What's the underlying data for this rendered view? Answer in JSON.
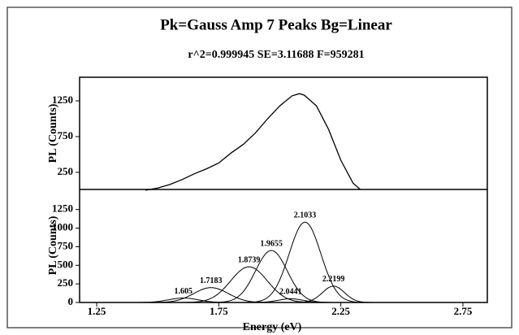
{
  "chart_data": [
    {
      "type": "line",
      "title": "Pk=Gauss Amp  7 Peaks  Bg=Linear",
      "subtitle": "r^2=0.999945  SE=3.11688  F=959281",
      "ylabel": "PL (Counts)",
      "color": "#000000",
      "x": [
        1.45,
        1.5,
        1.55,
        1.6,
        1.65,
        1.7,
        1.75,
        1.8,
        1.85,
        1.9,
        1.95,
        2.0,
        2.05,
        2.08,
        2.1,
        2.15,
        2.2,
        2.25,
        2.3,
        2.33
      ],
      "values": [
        0,
        30,
        80,
        150,
        230,
        300,
        380,
        520,
        640,
        800,
        1000,
        1180,
        1320,
        1350,
        1330,
        1180,
        850,
        420,
        100,
        10
      ],
      "xlim": [
        1.18,
        2.85
      ],
      "ylim": [
        11,
        1580
      ],
      "yticks": [
        250,
        750,
        1250
      ]
    },
    {
      "type": "peaks",
      "ylabel": "PL (Counts)",
      "xlabel": "Energy (eV)",
      "color": "#000000",
      "peaks": [
        {
          "center": 1.605,
          "amplitude": 60,
          "width": 0.06
        },
        {
          "center": 1.7183,
          "amplitude": 200,
          "width": 0.07
        },
        {
          "center": 1.8739,
          "amplitude": 480,
          "width": 0.075
        },
        {
          "center": 1.9655,
          "amplitude": 700,
          "width": 0.065
        },
        {
          "center": 2.0441,
          "amplitude": 50,
          "width": 0.05
        },
        {
          "center": 2.1033,
          "amplitude": 1080,
          "width": 0.065
        },
        {
          "center": 2.2199,
          "amplitude": 220,
          "width": 0.045
        }
      ],
      "xlim": [
        1.18,
        2.85
      ],
      "xticks": [
        1.25,
        1.75,
        2.25,
        2.75
      ],
      "ylim": [
        0,
        1520
      ],
      "yticks": [
        0,
        250,
        500,
        750,
        1000,
        1250
      ]
    }
  ]
}
